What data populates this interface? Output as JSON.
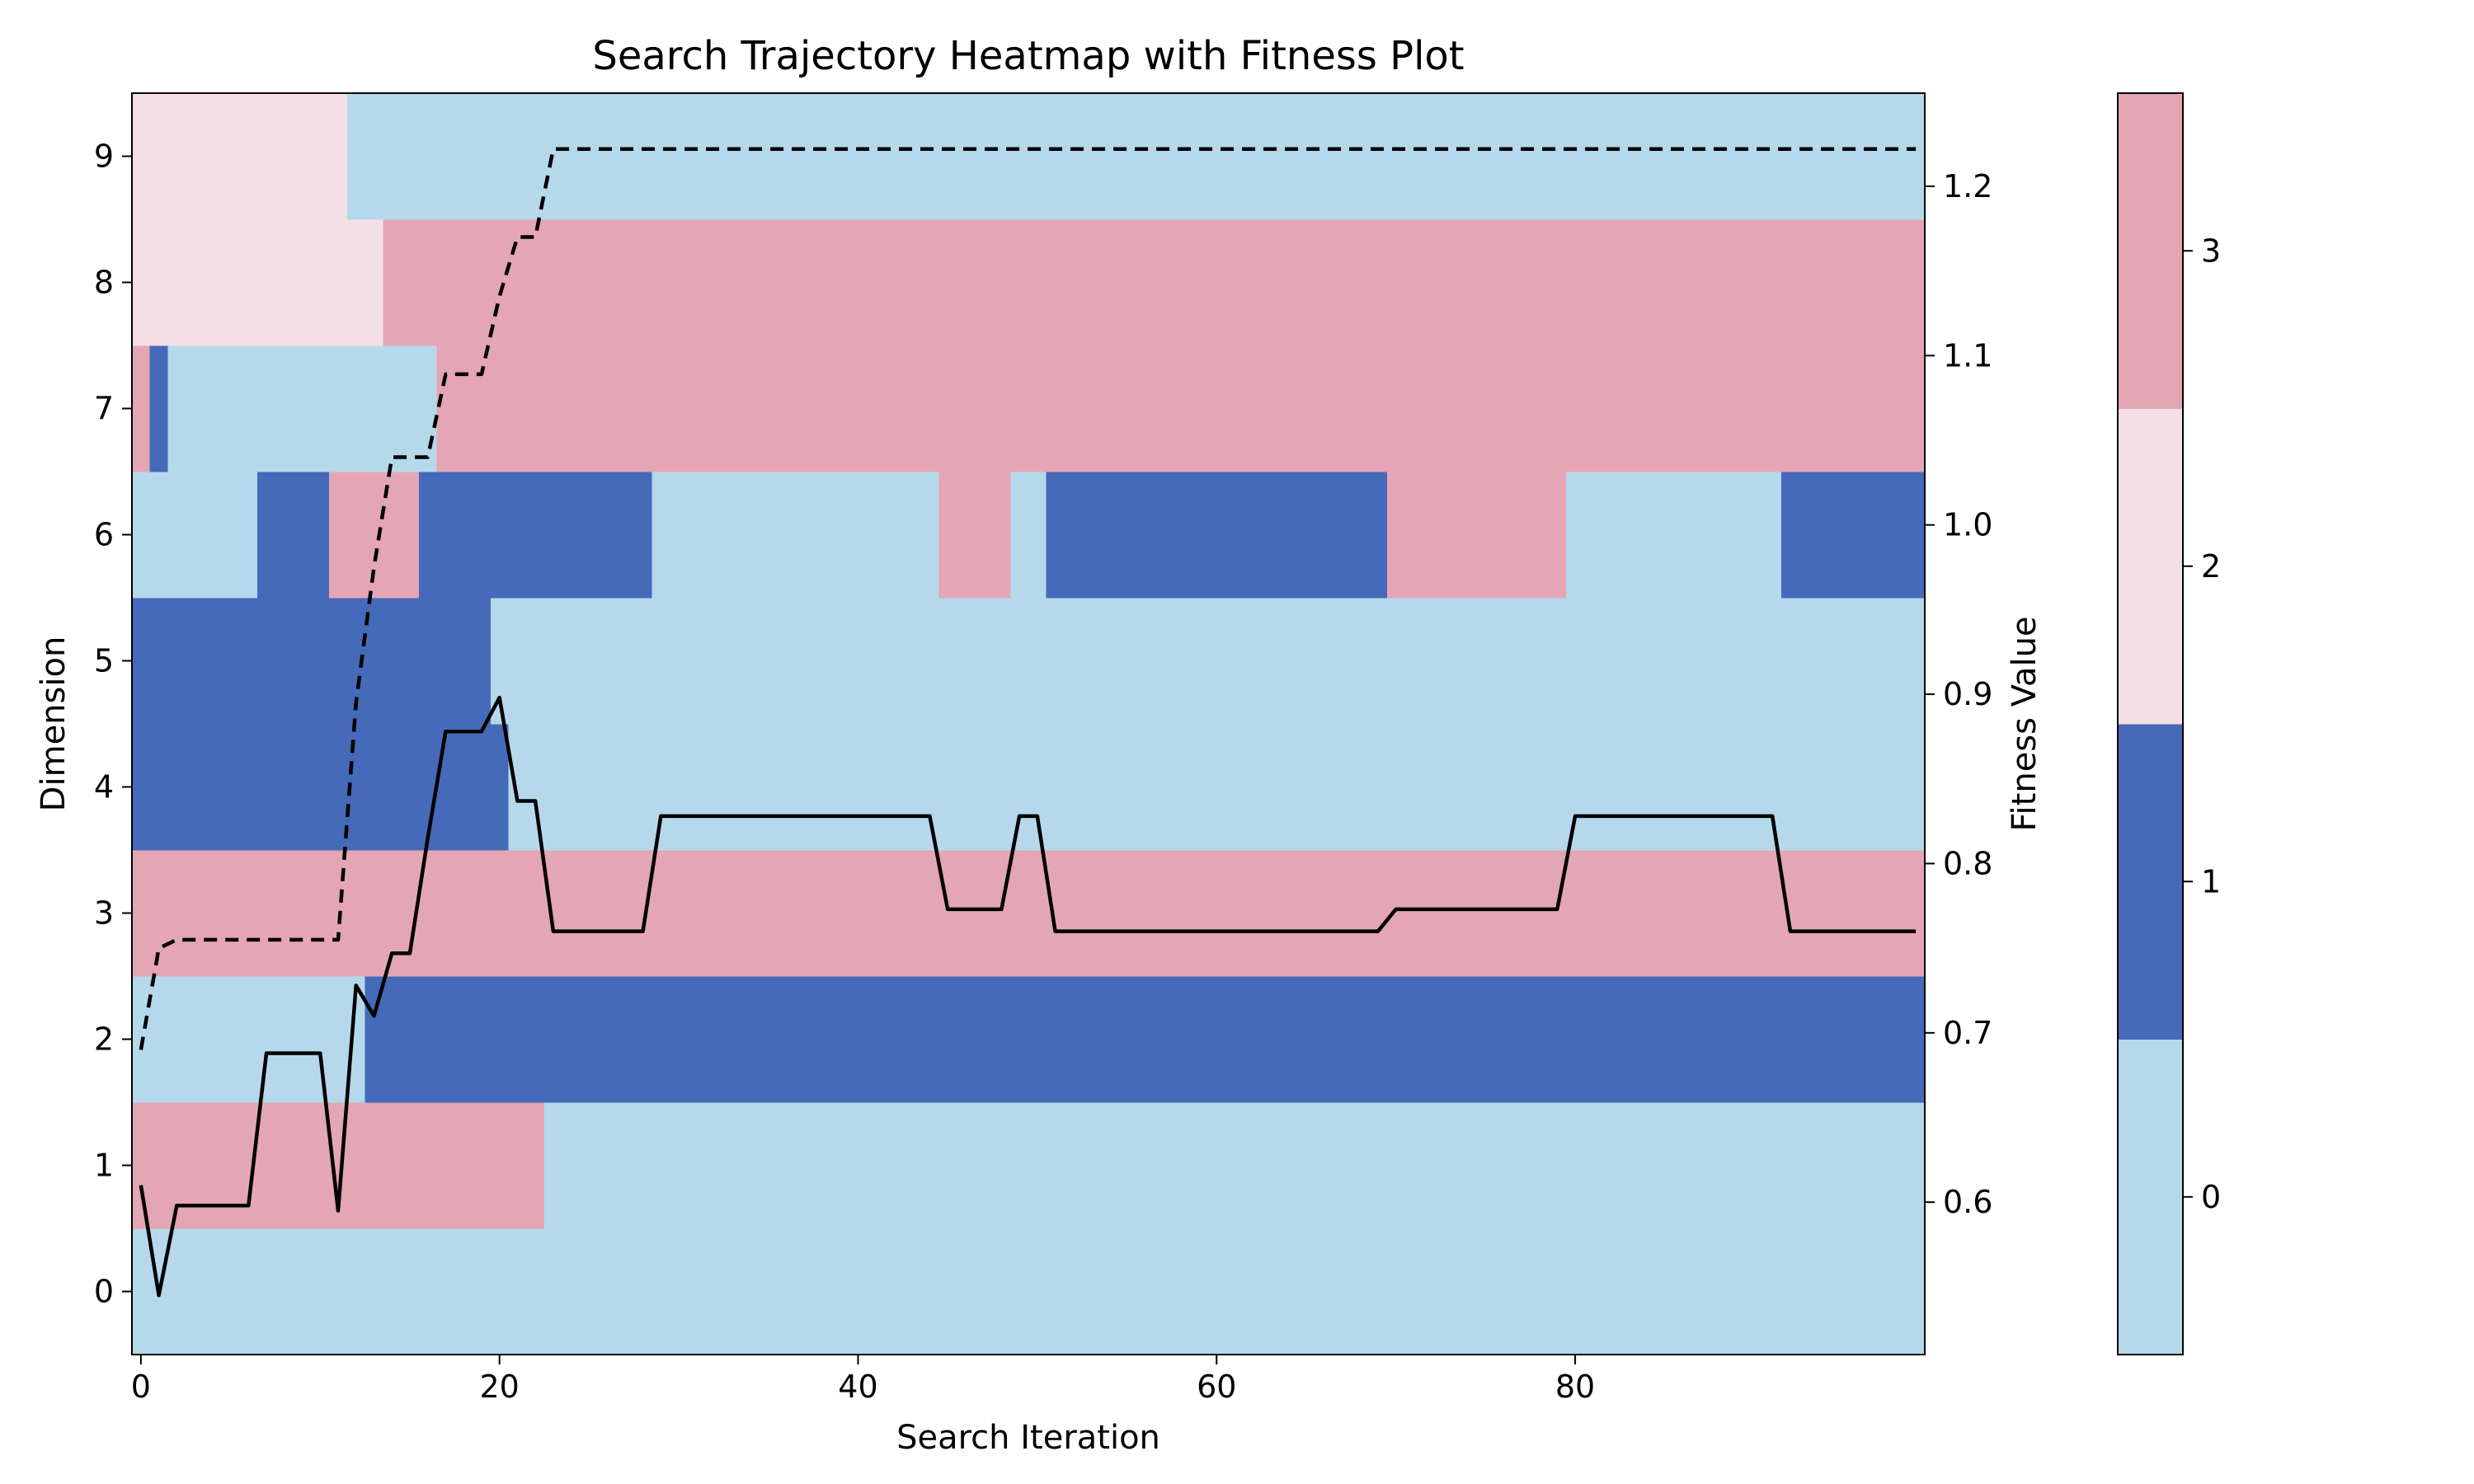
{
  "chart_data": {
    "type": "heatmap",
    "title": "Search Trajectory Heatmap with Fitness Plot",
    "xlabel": "Search Iteration",
    "ylabel": "Dimension",
    "y2label": "Fitness Value",
    "xlim": [
      -0.5,
      99.5
    ],
    "ylim": [
      -0.5,
      9.5
    ],
    "y2lim": [
      0.51,
      1.255
    ],
    "x_ticks": [
      0,
      20,
      40,
      60,
      80
    ],
    "y_ticks": [
      0,
      1,
      2,
      3,
      4,
      5,
      6,
      7,
      8,
      9
    ],
    "y2_ticks": [
      0.6,
      0.7,
      0.8,
      0.9,
      1.0,
      1.1,
      1.2
    ],
    "y2_tick_labels": [
      "0.6",
      "0.7",
      "0.8",
      "0.9",
      "1.0",
      "1.1",
      "1.2"
    ],
    "colorbar": {
      "levels": [
        0,
        1,
        2,
        3
      ],
      "colors": [
        "#b5d9eb",
        "#456ab9",
        "#f5dfe6",
        "#e4a6b4"
      ]
    },
    "grid": false,
    "heatmap_segments": [
      {
        "row": 0,
        "runs": [
          [
            0,
            99,
            0
          ]
        ]
      },
      {
        "row": 1,
        "runs": [
          [
            0,
            22,
            3
          ],
          [
            23,
            99,
            0
          ]
        ]
      },
      {
        "row": 2,
        "runs": [
          [
            0,
            12,
            0
          ],
          [
            13,
            99,
            1
          ]
        ]
      },
      {
        "row": 3,
        "runs": [
          [
            0,
            99,
            3
          ]
        ]
      },
      {
        "row": 4,
        "runs": [
          [
            0,
            20,
            1
          ],
          [
            21,
            99,
            0
          ]
        ]
      },
      {
        "row": 5,
        "runs": [
          [
            0,
            19,
            1
          ],
          [
            20,
            99,
            0
          ]
        ]
      },
      {
        "row": 6,
        "runs": [
          [
            0,
            6,
            0
          ],
          [
            7,
            10,
            1
          ],
          [
            11,
            15,
            3
          ],
          [
            16,
            28,
            1
          ],
          [
            29,
            44,
            0
          ],
          [
            45,
            48,
            3
          ],
          [
            49,
            50,
            0
          ],
          [
            51,
            69,
            1
          ],
          [
            70,
            79,
            3
          ],
          [
            80,
            91,
            0
          ],
          [
            92,
            99,
            1
          ]
        ]
      },
      {
        "row": 7,
        "runs": [
          [
            0,
            0,
            3
          ],
          [
            1,
            1,
            1
          ],
          [
            2,
            16,
            0
          ],
          [
            17,
            99,
            3
          ]
        ]
      },
      {
        "row": 8,
        "runs": [
          [
            0,
            13,
            2
          ],
          [
            14,
            99,
            3
          ]
        ]
      },
      {
        "row": 9,
        "runs": [
          [
            0,
            11,
            2
          ],
          [
            12,
            99,
            0
          ]
        ]
      }
    ],
    "series": [
      {
        "style": "solid",
        "x": [
          0,
          1,
          2,
          3,
          4,
          5,
          6,
          7,
          8,
          9,
          10,
          11,
          12,
          13,
          14,
          15,
          16,
          17,
          18,
          19,
          20,
          21,
          22,
          23,
          24,
          25,
          26,
          27,
          28,
          29,
          30,
          44,
          45,
          48,
          49,
          50,
          51,
          52,
          69,
          70,
          71,
          79,
          80,
          81,
          91,
          92,
          99
        ],
        "values": [
          0.61,
          0.545,
          0.598,
          0.598,
          0.598,
          0.598,
          0.598,
          0.688,
          0.688,
          0.688,
          0.688,
          0.595,
          0.728,
          0.71,
          0.747,
          0.747,
          0.815,
          0.878,
          0.878,
          0.878,
          0.898,
          0.837,
          0.837,
          0.76,
          0.76,
          0.76,
          0.76,
          0.76,
          0.76,
          0.828,
          0.828,
          0.828,
          0.773,
          0.773,
          0.828,
          0.828,
          0.76,
          0.76,
          0.76,
          0.773,
          0.773,
          0.773,
          0.828,
          0.828,
          0.828,
          0.76,
          0.76
        ]
      },
      {
        "style": "dashed",
        "x": [
          0,
          1,
          2,
          3,
          4,
          5,
          6,
          7,
          8,
          9,
          10,
          11,
          12,
          13,
          14,
          15,
          16,
          17,
          18,
          19,
          20,
          21,
          22,
          23,
          24,
          99
        ],
        "values": [
          0.69,
          0.75,
          0.755,
          0.755,
          0.755,
          0.755,
          0.755,
          0.755,
          0.755,
          0.755,
          0.755,
          0.755,
          0.895,
          0.975,
          1.04,
          1.04,
          1.04,
          1.089,
          1.089,
          1.089,
          1.135,
          1.17,
          1.17,
          1.222,
          1.222,
          1.222
        ]
      }
    ]
  }
}
